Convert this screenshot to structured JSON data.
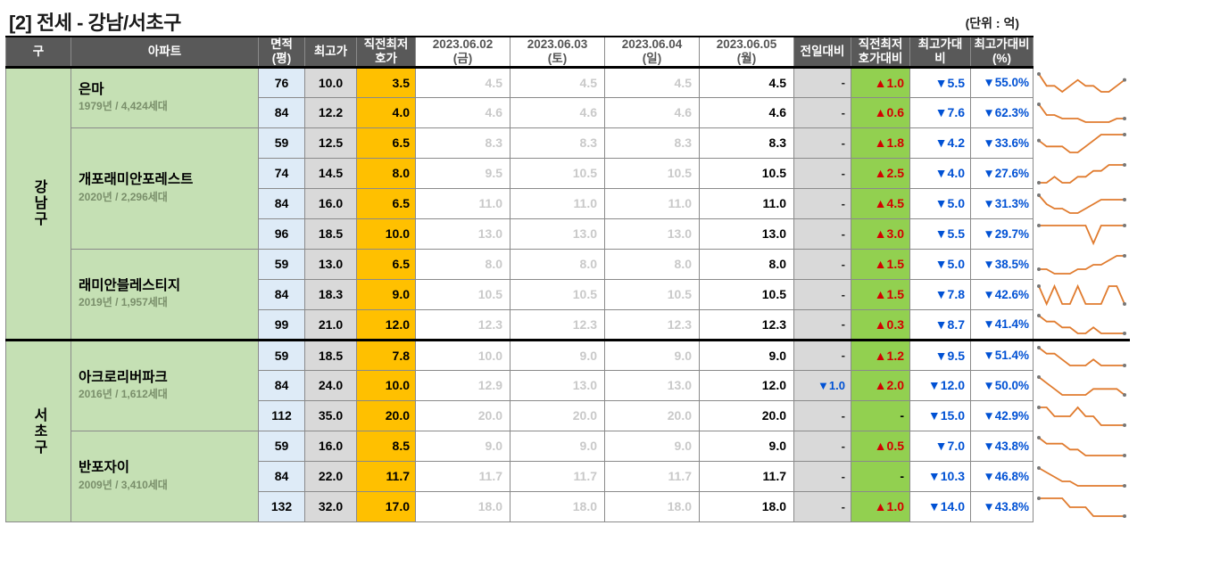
{
  "title": "[2] 전세 - 강남/서초구",
  "unit_label": "(단위 : 억)",
  "headers": {
    "gu": "구",
    "apt": "아파트",
    "area": "면적\n(평)",
    "high": "최고가",
    "prev_low": "직전최저\n호가",
    "dates": [
      {
        "date": "2023.06.02",
        "dow": "(금)"
      },
      {
        "date": "2023.06.03",
        "dow": "(토)"
      },
      {
        "date": "2023.06.04",
        "dow": "(일)"
      },
      {
        "date": "2023.06.05",
        "dow": "(월)"
      }
    ],
    "dod": "전일대비",
    "vs_prev_low": "직전최저\n호가대비",
    "vs_high": "최고가대\n비",
    "vs_high_pct": "최고가대비\n(%)"
  },
  "colors": {
    "header_bg": "#595959",
    "header_fg": "#ffffff",
    "gu_bg": "#c5e0b4",
    "apt_bg": "#c5e0b4",
    "area_bg": "#deebf7",
    "high_bg": "#d9d9d9",
    "prevlow_bg": "#ffc000",
    "dod_bg": "#d9d9d9",
    "vprev_bg": "#92d050",
    "faded_text": "#c9c9c9",
    "up": "#d40000",
    "dn": "#0051d4",
    "spark_stroke": "#e07b2e",
    "spark_dot": "#777777"
  },
  "districts": [
    {
      "gu": "강남구",
      "apartments": [
        {
          "name": "은마",
          "sub": "1979년 / 4,424세대",
          "rows": [
            {
              "area": "76",
              "high": "10.0",
              "prev_low": "3.5",
              "dates": [
                "4.5",
                "4.5",
                "4.5",
                "4.5"
              ],
              "dod": "-",
              "vprev": {
                "dir": "up",
                "val": "1.0"
              },
              "vhigh": {
                "dir": "dn",
                "val": "5.5"
              },
              "vhighpct": {
                "dir": "dn",
                "val": "55.0%"
              },
              "spark": [
                8,
                6,
                6,
                5,
                6,
                7,
                6,
                6,
                5,
                5,
                6,
                7
              ]
            },
            {
              "area": "84",
              "high": "12.2",
              "prev_low": "4.0",
              "dates": [
                "4.6",
                "4.6",
                "4.6",
                "4.6"
              ],
              "dod": "-",
              "vprev": {
                "dir": "up",
                "val": "0.6"
              },
              "vhigh": {
                "dir": "dn",
                "val": "7.6"
              },
              "vhighpct": {
                "dir": "dn",
                "val": "62.3%"
              },
              "spark": [
                10,
                7,
                7,
                6,
                6,
                6,
                5,
                5,
                5,
                5,
                6,
                6
              ]
            }
          ]
        },
        {
          "name": "개포래미안포레스트",
          "sub": "2020년 / 2,296세대",
          "rows": [
            {
              "area": "59",
              "high": "12.5",
              "prev_low": "6.5",
              "dates": [
                "8.3",
                "8.3",
                "8.3",
                "8.3"
              ],
              "dod": "-",
              "vprev": {
                "dir": "up",
                "val": "1.8"
              },
              "vhigh": {
                "dir": "dn",
                "val": "4.2"
              },
              "vhighpct": {
                "dir": "dn",
                "val": "33.6%"
              },
              "spark": [
                6,
                5,
                5,
                5,
                4,
                4,
                5,
                6,
                7,
                7,
                7,
                7
              ]
            },
            {
              "area": "74",
              "high": "14.5",
              "prev_low": "8.0",
              "dates": [
                "9.5",
                "10.5",
                "10.5",
                "10.5"
              ],
              "dod": "-",
              "vprev": {
                "dir": "up",
                "val": "2.5"
              },
              "vhigh": {
                "dir": "dn",
                "val": "4.0"
              },
              "vhighpct": {
                "dir": "dn",
                "val": "27.6%"
              },
              "spark": [
                5,
                5,
                6,
                5,
                5,
                6,
                6,
                7,
                7,
                8,
                8,
                8
              ]
            },
            {
              "area": "84",
              "high": "16.0",
              "prev_low": "6.5",
              "dates": [
                "11.0",
                "11.0",
                "11.0",
                "11.0"
              ],
              "dod": "-",
              "vprev": {
                "dir": "up",
                "val": "4.5"
              },
              "vhigh": {
                "dir": "dn",
                "val": "5.0"
              },
              "vhighpct": {
                "dir": "dn",
                "val": "31.3%"
              },
              "spark": [
                8,
                6,
                5,
                5,
                4,
                4,
                5,
                6,
                7,
                7,
                7,
                7
              ]
            },
            {
              "area": "96",
              "high": "18.5",
              "prev_low": "10.0",
              "dates": [
                "13.0",
                "13.0",
                "13.0",
                "13.0"
              ],
              "dod": "-",
              "vprev": {
                "dir": "up",
                "val": "3.0"
              },
              "vhigh": {
                "dir": "dn",
                "val": "5.5"
              },
              "vhighpct": {
                "dir": "dn",
                "val": "29.7%"
              },
              "spark": [
                7,
                7,
                7,
                7,
                7,
                7,
                7,
                2,
                7,
                7,
                7,
                7
              ]
            }
          ]
        },
        {
          "name": "래미안블레스티지",
          "sub": "2019년 / 1,957세대",
          "rows": [
            {
              "area": "59",
              "high": "13.0",
              "prev_low": "6.5",
              "dates": [
                "8.0",
                "8.0",
                "8.0",
                "8.0"
              ],
              "dod": "-",
              "vprev": {
                "dir": "up",
                "val": "1.5"
              },
              "vhigh": {
                "dir": "dn",
                "val": "5.0"
              },
              "vhighpct": {
                "dir": "dn",
                "val": "38.5%"
              },
              "spark": [
                5,
                5,
                4,
                4,
                4,
                5,
                5,
                6,
                6,
                7,
                8,
                8
              ]
            },
            {
              "area": "84",
              "high": "18.3",
              "prev_low": "9.0",
              "dates": [
                "10.5",
                "10.5",
                "10.5",
                "10.5"
              ],
              "dod": "-",
              "vprev": {
                "dir": "up",
                "val": "1.5"
              },
              "vhigh": {
                "dir": "dn",
                "val": "7.8"
              },
              "vhighpct": {
                "dir": "dn",
                "val": "42.6%"
              },
              "spark": [
                7,
                6,
                7,
                6,
                6,
                7,
                6,
                6,
                6,
                7,
                7,
                6
              ]
            },
            {
              "area": "99",
              "high": "21.0",
              "prev_low": "12.0",
              "dates": [
                "12.3",
                "12.3",
                "12.3",
                "12.3"
              ],
              "dod": "-",
              "vprev": {
                "dir": "up",
                "val": "0.3"
              },
              "vhigh": {
                "dir": "dn",
                "val": "8.7"
              },
              "vhighpct": {
                "dir": "dn",
                "val": "41.4%"
              },
              "spark": [
                8,
                7,
                7,
                6,
                6,
                5,
                5,
                6,
                5,
                5,
                5,
                5
              ]
            }
          ]
        }
      ]
    },
    {
      "gu": "서초구",
      "apartments": [
        {
          "name": "아크로리버파크",
          "sub": "2016년 / 1,612세대",
          "rows": [
            {
              "area": "59",
              "high": "18.5",
              "prev_low": "7.8",
              "dates": [
                "10.0",
                "9.0",
                "9.0",
                "9.0"
              ],
              "dod": "-",
              "vprev": {
                "dir": "up",
                "val": "1.2"
              },
              "vhigh": {
                "dir": "dn",
                "val": "9.5"
              },
              "vhighpct": {
                "dir": "dn",
                "val": "51.4%"
              },
              "spark": [
                8,
                7,
                7,
                6,
                5,
                5,
                5,
                6,
                5,
                5,
                5,
                5
              ]
            },
            {
              "area": "84",
              "high": "24.0",
              "prev_low": "10.0",
              "dates": [
                "12.9",
                "13.0",
                "13.0",
                "12.0"
              ],
              "dod": {
                "dir": "dn",
                "val": "1.0"
              },
              "vprev": {
                "dir": "up",
                "val": "2.0"
              },
              "vhigh": {
                "dir": "dn",
                "val": "12.0"
              },
              "vhighpct": {
                "dir": "dn",
                "val": "50.0%"
              },
              "spark": [
                8,
                7,
                6,
                5,
                5,
                5,
                5,
                6,
                6,
                6,
                6,
                5
              ]
            },
            {
              "area": "112",
              "high": "35.0",
              "prev_low": "20.0",
              "dates": [
                "20.0",
                "20.0",
                "20.0",
                "20.0"
              ],
              "dod": "-",
              "vprev": "-",
              "vhigh": {
                "dir": "dn",
                "val": "15.0"
              },
              "vhighpct": {
                "dir": "dn",
                "val": "42.9%"
              },
              "spark": [
                7,
                7,
                6,
                6,
                6,
                7,
                6,
                6,
                5,
                5,
                5,
                5
              ]
            }
          ]
        },
        {
          "name": "반포자이",
          "sub": "2009년 / 3,410세대",
          "rows": [
            {
              "area": "59",
              "high": "16.0",
              "prev_low": "8.5",
              "dates": [
                "9.0",
                "9.0",
                "9.0",
                "9.0"
              ],
              "dod": "-",
              "vprev": {
                "dir": "up",
                "val": "0.5"
              },
              "vhigh": {
                "dir": "dn",
                "val": "7.0"
              },
              "vhighpct": {
                "dir": "dn",
                "val": "43.8%"
              },
              "spark": [
                8,
                7,
                7,
                7,
                6,
                6,
                5,
                5,
                5,
                5,
                5,
                5
              ]
            },
            {
              "area": "84",
              "high": "22.0",
              "prev_low": "11.7",
              "dates": [
                "11.7",
                "11.7",
                "11.7",
                "11.7"
              ],
              "dod": "-",
              "vprev": "-",
              "vhigh": {
                "dir": "dn",
                "val": "10.3"
              },
              "vhighpct": {
                "dir": "dn",
                "val": "46.8%"
              },
              "spark": [
                9,
                8,
                7,
                6,
                6,
                5,
                5,
                5,
                5,
                5,
                5,
                5
              ]
            },
            {
              "area": "132",
              "high": "32.0",
              "prev_low": "17.0",
              "dates": [
                "18.0",
                "18.0",
                "18.0",
                "18.0"
              ],
              "dod": "-",
              "vprev": {
                "dir": "up",
                "val": "1.0"
              },
              "vhigh": {
                "dir": "dn",
                "val": "14.0"
              },
              "vhighpct": {
                "dir": "dn",
                "val": "43.8%"
              },
              "spark": [
                7,
                7,
                7,
                7,
                6,
                6,
                6,
                5,
                5,
                5,
                5,
                5
              ]
            }
          ]
        }
      ]
    }
  ]
}
